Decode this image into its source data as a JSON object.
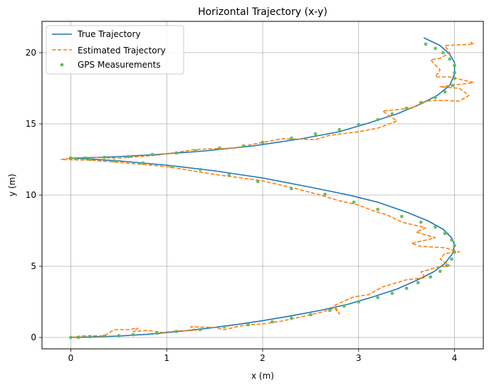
{
  "chart_data": {
    "type": "line",
    "title": "Horizontal Trajectory (x-y)",
    "xlabel": "x (m)",
    "ylabel": "y (m)",
    "xlim": [
      -0.3,
      4.3
    ],
    "ylim": [
      -0.8,
      22.2
    ],
    "xticks": [
      0,
      1,
      2,
      3,
      4
    ],
    "yticks": [
      0,
      5,
      10,
      15,
      20
    ],
    "grid": true,
    "legend_position": "top-left",
    "series": [
      {
        "name": "True Trajectory",
        "style": "solid",
        "color": "#1f77b4",
        "points": [
          [
            0.0,
            0.0
          ],
          [
            0.2,
            0.03
          ],
          [
            0.5,
            0.1
          ],
          [
            0.8,
            0.22
          ],
          [
            1.1,
            0.4
          ],
          [
            1.4,
            0.62
          ],
          [
            1.7,
            0.88
          ],
          [
            2.0,
            1.18
          ],
          [
            2.3,
            1.52
          ],
          [
            2.6,
            1.9
          ],
          [
            2.9,
            2.35
          ],
          [
            3.15,
            2.85
          ],
          [
            3.4,
            3.4
          ],
          [
            3.6,
            4.0
          ],
          [
            3.78,
            4.6
          ],
          [
            3.9,
            5.2
          ],
          [
            3.98,
            5.9
          ],
          [
            4.0,
            6.5
          ],
          [
            3.97,
            7.0
          ],
          [
            3.88,
            7.6
          ],
          [
            3.72,
            8.2
          ],
          [
            3.5,
            8.8
          ],
          [
            3.2,
            9.5
          ],
          [
            2.9,
            10.0
          ],
          [
            2.5,
            10.55
          ],
          [
            2.0,
            11.2
          ],
          [
            1.5,
            11.7
          ],
          [
            1.0,
            12.1
          ],
          [
            0.5,
            12.4
          ],
          [
            0.15,
            12.55
          ],
          [
            0.0,
            12.6
          ],
          [
            0.2,
            12.62
          ],
          [
            0.5,
            12.7
          ],
          [
            0.9,
            12.85
          ],
          [
            1.4,
            13.1
          ],
          [
            1.9,
            13.45
          ],
          [
            2.4,
            13.95
          ],
          [
            2.8,
            14.45
          ],
          [
            3.1,
            15.05
          ],
          [
            3.4,
            15.7
          ],
          [
            3.65,
            16.4
          ],
          [
            3.82,
            17.0
          ],
          [
            3.95,
            17.7
          ],
          [
            4.0,
            18.5
          ],
          [
            4.0,
            19.3
          ],
          [
            3.95,
            19.9
          ],
          [
            3.85,
            20.5
          ],
          [
            3.68,
            21.05
          ]
        ]
      },
      {
        "name": "Estimated Trajectory",
        "style": "dashed",
        "color": "#ff7f0e",
        "points": [
          [
            0.0,
            0.0
          ],
          [
            0.1,
            0.1
          ],
          [
            0.2,
            0.12
          ],
          [
            0.35,
            0.1
          ],
          [
            0.45,
            0.55
          ],
          [
            0.6,
            0.55
          ],
          [
            0.7,
            0.65
          ],
          [
            0.65,
            0.42
          ],
          [
            0.8,
            0.5
          ],
          [
            0.95,
            0.35
          ],
          [
            1.1,
            0.45
          ],
          [
            1.3,
            0.5
          ],
          [
            1.25,
            0.75
          ],
          [
            1.5,
            0.7
          ],
          [
            1.6,
            0.55
          ],
          [
            1.8,
            0.85
          ],
          [
            2.0,
            0.95
          ],
          [
            2.2,
            1.15
          ],
          [
            2.4,
            1.45
          ],
          [
            2.6,
            1.75
          ],
          [
            2.75,
            2.05
          ],
          [
            2.8,
            1.65
          ],
          [
            2.75,
            2.25
          ],
          [
            2.95,
            2.85
          ],
          [
            3.1,
            3.0
          ],
          [
            3.25,
            3.55
          ],
          [
            3.5,
            4.05
          ],
          [
            3.7,
            4.2
          ],
          [
            3.65,
            4.6
          ],
          [
            3.8,
            4.9
          ],
          [
            3.95,
            5.05
          ],
          [
            3.85,
            5.5
          ],
          [
            3.9,
            5.9
          ],
          [
            4.05,
            6.0
          ],
          [
            3.9,
            6.3
          ],
          [
            3.65,
            6.4
          ],
          [
            3.55,
            6.6
          ],
          [
            3.8,
            7.0
          ],
          [
            3.6,
            7.4
          ],
          [
            3.7,
            7.7
          ],
          [
            3.45,
            8.1
          ],
          [
            3.3,
            8.6
          ],
          [
            3.15,
            8.9
          ],
          [
            3.0,
            9.3
          ],
          [
            2.8,
            9.6
          ],
          [
            2.6,
            10.0
          ],
          [
            2.35,
            10.45
          ],
          [
            2.0,
            11.0
          ],
          [
            1.5,
            11.45
          ],
          [
            1.0,
            12.0
          ],
          [
            0.5,
            12.3
          ],
          [
            0.2,
            12.45
          ],
          [
            -0.1,
            12.5
          ],
          [
            0.0,
            12.6
          ],
          [
            0.2,
            12.65
          ],
          [
            0.5,
            12.6
          ],
          [
            0.9,
            12.8
          ],
          [
            1.3,
            13.2
          ],
          [
            1.7,
            13.3
          ],
          [
            2.0,
            13.7
          ],
          [
            2.2,
            13.95
          ],
          [
            2.55,
            13.9
          ],
          [
            2.7,
            14.2
          ],
          [
            3.0,
            14.45
          ],
          [
            3.2,
            14.7
          ],
          [
            3.4,
            15.2
          ],
          [
            3.25,
            15.9
          ],
          [
            3.55,
            16.1
          ],
          [
            3.7,
            16.6
          ],
          [
            3.85,
            16.65
          ],
          [
            4.05,
            16.6
          ],
          [
            4.15,
            17.0
          ],
          [
            4.05,
            17.5
          ],
          [
            3.85,
            17.6
          ],
          [
            4.2,
            17.9
          ],
          [
            3.95,
            18.3
          ],
          [
            3.8,
            18.3
          ],
          [
            3.85,
            18.8
          ],
          [
            3.75,
            19.5
          ],
          [
            3.85,
            19.6
          ],
          [
            3.95,
            20.0
          ],
          [
            3.9,
            20.5
          ],
          [
            4.2,
            20.6
          ],
          [
            4.15,
            20.8
          ]
        ]
      },
      {
        "name": "GPS Measurements",
        "style": "markers",
        "color": "#5cb85c",
        "points": [
          [
            0.0,
            0.0
          ],
          [
            0.08,
            0.0
          ],
          [
            0.2,
            0.05
          ],
          [
            0.35,
            0.1
          ],
          [
            0.5,
            0.12
          ],
          [
            0.65,
            0.2
          ],
          [
            0.9,
            0.3
          ],
          [
            1.1,
            0.42
          ],
          [
            1.35,
            0.55
          ],
          [
            1.6,
            0.75
          ],
          [
            1.85,
            0.9
          ],
          [
            2.1,
            1.1
          ],
          [
            2.3,
            1.35
          ],
          [
            2.5,
            1.6
          ],
          [
            2.7,
            1.9
          ],
          [
            2.85,
            2.2
          ],
          [
            3.0,
            2.5
          ],
          [
            3.2,
            2.8
          ],
          [
            3.35,
            3.1
          ],
          [
            3.5,
            3.45
          ],
          [
            3.62,
            3.85
          ],
          [
            3.75,
            4.25
          ],
          [
            3.85,
            4.65
          ],
          [
            3.92,
            5.05
          ],
          [
            3.97,
            5.5
          ],
          [
            4.0,
            6.0
          ],
          [
            4.0,
            6.45
          ],
          [
            3.97,
            6.85
          ],
          [
            3.9,
            7.3
          ],
          [
            3.8,
            7.75
          ],
          [
            3.65,
            8.1
          ],
          [
            3.45,
            8.5
          ],
          [
            3.2,
            9.0
          ],
          [
            2.95,
            9.5
          ],
          [
            2.65,
            10.05
          ],
          [
            2.3,
            10.45
          ],
          [
            1.95,
            10.95
          ],
          [
            1.65,
            11.4
          ],
          [
            1.35,
            11.8
          ],
          [
            1.05,
            12.0
          ],
          [
            0.75,
            12.25
          ],
          [
            0.45,
            12.4
          ],
          [
            0.2,
            12.5
          ],
          [
            0.05,
            12.55
          ],
          [
            0.0,
            12.6
          ],
          [
            0.15,
            12.6
          ],
          [
            0.35,
            12.65
          ],
          [
            0.6,
            12.7
          ],
          [
            0.85,
            12.85
          ],
          [
            1.1,
            12.95
          ],
          [
            1.3,
            13.1
          ],
          [
            1.55,
            13.3
          ],
          [
            1.8,
            13.45
          ],
          [
            2.0,
            13.7
          ],
          [
            2.3,
            14.0
          ],
          [
            2.55,
            14.3
          ],
          [
            2.8,
            14.6
          ],
          [
            3.0,
            14.95
          ],
          [
            3.2,
            15.3
          ],
          [
            3.35,
            15.7
          ],
          [
            3.5,
            16.1
          ],
          [
            3.65,
            16.5
          ],
          [
            3.8,
            16.85
          ],
          [
            3.9,
            17.25
          ],
          [
            3.98,
            17.7
          ],
          [
            4.0,
            18.2
          ],
          [
            4.0,
            18.6
          ],
          [
            4.0,
            19.1
          ],
          [
            3.95,
            19.55
          ],
          [
            3.88,
            20.0
          ],
          [
            3.8,
            20.3
          ],
          [
            3.7,
            20.6
          ]
        ]
      }
    ]
  }
}
